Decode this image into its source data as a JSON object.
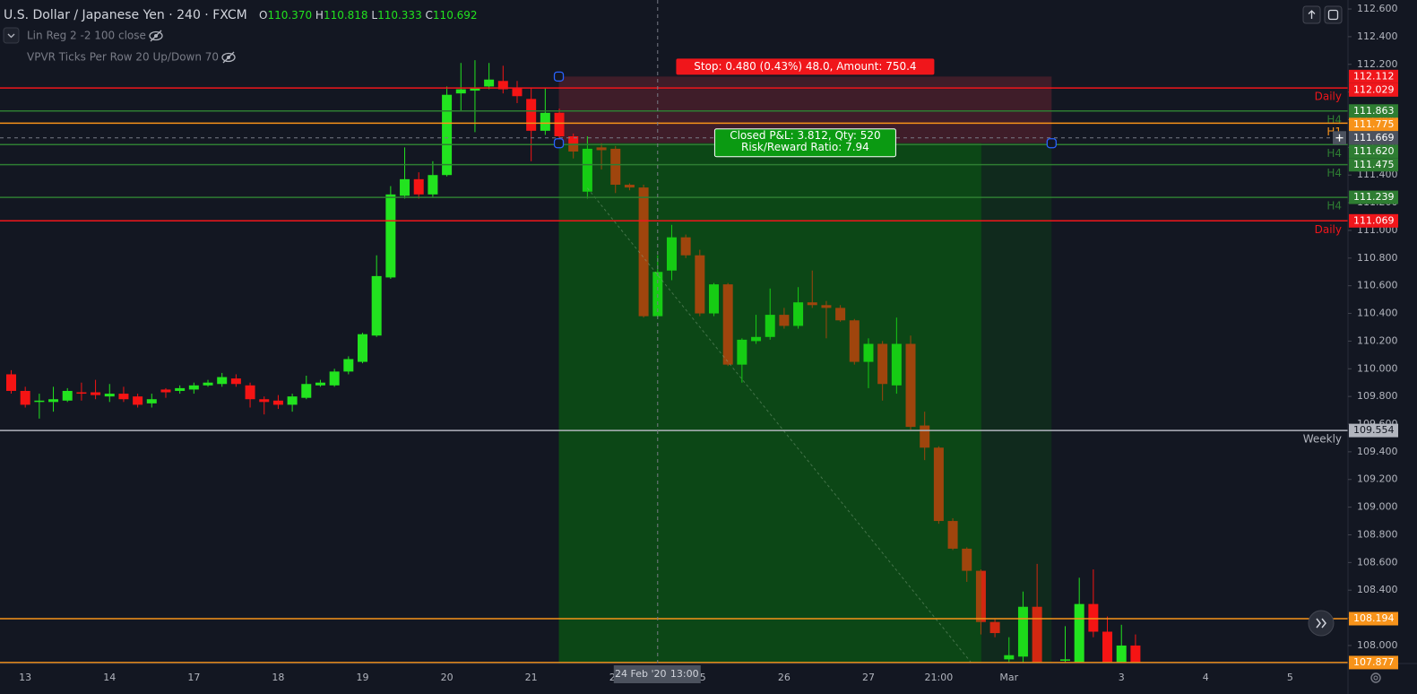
{
  "chart_data": {
    "type": "candlestick",
    "symbol": "U.S. Dollar / Japanese Yen",
    "interval": "240",
    "exchange": "FXCM",
    "legend_ohlc": [
      {
        "key": "O",
        "value": "110.370"
      },
      {
        "key": "H",
        "value": "110.818"
      },
      {
        "key": "L",
        "value": "110.333"
      },
      {
        "key": "C",
        "value": "110.692"
      }
    ],
    "indicators": [
      "Lin Reg 2 -2 100 close",
      "VPVR Ticks Per Row 20 Up/Down 70"
    ],
    "categories": [
      null,
      "13",
      null,
      null,
      null,
      null,
      null,
      "14",
      null,
      null,
      null,
      null,
      null,
      "17",
      null,
      null,
      null,
      null,
      null,
      "18",
      null,
      null,
      null,
      null,
      null,
      "19",
      null,
      null,
      null,
      null,
      null,
      "20",
      null,
      null,
      null,
      null,
      null,
      "21",
      null,
      null,
      null,
      null,
      null,
      "24",
      null,
      null,
      null,
      null,
      null,
      "25",
      null,
      null,
      null,
      null,
      null,
      "26",
      null,
      null,
      null,
      null,
      null,
      "27",
      null,
      null,
      null,
      null,
      "21:00",
      null,
      null,
      null,
      null,
      "Mar",
      null,
      null,
      null,
      null,
      null,
      null,
      null,
      "3",
      null,
      null,
      null,
      null,
      null,
      "4",
      null,
      null,
      null,
      null,
      null,
      "5"
    ],
    "open": [
      109.96,
      109.84,
      109.76,
      109.76,
      109.77,
      109.83,
      109.83,
      109.8,
      109.82,
      109.8,
      109.75,
      109.85,
      109.84,
      109.85,
      109.88,
      109.89,
      109.93,
      109.88,
      109.78,
      109.77,
      109.74,
      109.79,
      109.88,
      109.88,
      109.98,
      110.05,
      110.24,
      110.66,
      111.25,
      111.37,
      111.26,
      111.4,
      111.99,
      112.01,
      112.04,
      112.08,
      112.03,
      111.95,
      111.72,
      111.85,
      111.68,
      111.28,
      111.6,
      111.59,
      111.33,
      111.31,
      110.38,
      110.71,
      110.95,
      110.82,
      110.4,
      110.61,
      110.03,
      110.2,
      110.23,
      110.39,
      110.31,
      110.48,
      110.46,
      110.44,
      110.35,
      110.05,
      110.18,
      109.88,
      110.18,
      109.59,
      109.43,
      108.9,
      108.7,
      108.54,
      108.17,
      107.9,
      107.92,
      108.28,
      null,
      107.89,
      107.85,
      108.3,
      108.1,
      107.88,
      108.0,
      null,
      null,
      null,
      null,
      null,
      null,
      null,
      null,
      null,
      null,
      null
    ],
    "high": [
      109.99,
      109.87,
      109.82,
      109.87,
      109.86,
      109.9,
      109.92,
      109.89,
      109.87,
      109.82,
      109.82,
      109.86,
      109.88,
      109.9,
      109.92,
      109.97,
      109.96,
      109.9,
      109.8,
      109.81,
      109.82,
      109.95,
      109.92,
      110.0,
      110.09,
      110.26,
      110.82,
      111.32,
      111.6,
      111.42,
      111.5,
      112.04,
      112.21,
      112.23,
      112.21,
      112.19,
      112.08,
      112.03,
      112.03,
      111.88,
      111.7,
      111.68,
      111.63,
      111.61,
      111.34,
      111.33,
      110.82,
      111.04,
      110.97,
      110.86,
      110.62,
      110.62,
      110.22,
      110.39,
      110.58,
      110.44,
      110.59,
      110.71,
      110.49,
      110.46,
      110.36,
      110.22,
      110.2,
      110.37,
      110.24,
      109.69,
      109.44,
      108.92,
      108.71,
      108.55,
      108.19,
      108.06,
      108.39,
      108.59,
      null,
      108.14,
      108.49,
      108.55,
      108.21,
      108.15,
      108.08,
      null,
      null,
      null,
      null,
      null,
      null,
      null,
      null,
      null,
      null,
      null
    ],
    "low": [
      109.82,
      109.72,
      109.64,
      109.69,
      109.76,
      109.77,
      109.78,
      109.76,
      109.76,
      109.72,
      109.72,
      109.79,
      109.82,
      109.82,
      109.87,
      109.87,
      109.87,
      109.72,
      109.67,
      109.71,
      109.69,
      109.78,
      109.87,
      109.87,
      109.96,
      110.04,
      110.23,
      110.65,
      111.23,
      111.23,
      111.24,
      111.39,
      111.86,
      111.71,
      112.02,
      111.99,
      111.92,
      111.5,
      111.69,
      111.6,
      111.52,
      111.23,
      111.44,
      111.27,
      111.29,
      110.37,
      110.37,
      110.64,
      110.8,
      110.38,
      110.38,
      110.02,
      109.9,
      110.18,
      110.21,
      110.29,
      110.29,
      110.44,
      110.22,
      110.34,
      110.03,
      109.86,
      109.77,
      109.82,
      109.56,
      109.34,
      108.88,
      108.69,
      108.46,
      108.08,
      108.06,
      107.85,
      107.85,
      107.82,
      null,
      107.84,
      107.82,
      108.06,
      107.82,
      107.84,
      107.83,
      null,
      null,
      null,
      null,
      null,
      null,
      null,
      null,
      null,
      null,
      null
    ],
    "close": [
      109.84,
      109.74,
      109.77,
      109.78,
      109.84,
      109.82,
      109.81,
      109.82,
      109.78,
      109.74,
      109.78,
      109.83,
      109.86,
      109.88,
      109.9,
      109.94,
      109.89,
      109.78,
      109.76,
      109.74,
      109.8,
      109.89,
      109.9,
      109.98,
      110.07,
      110.25,
      110.67,
      111.26,
      111.37,
      111.26,
      111.4,
      111.98,
      112.02,
      112.03,
      112.09,
      112.02,
      111.97,
      111.72,
      111.85,
      111.68,
      111.57,
      111.59,
      111.58,
      111.33,
      111.31,
      110.38,
      110.7,
      110.95,
      110.82,
      110.4,
      110.61,
      110.03,
      110.21,
      110.23,
      110.39,
      110.31,
      110.48,
      110.46,
      110.44,
      110.35,
      110.05,
      110.18,
      109.89,
      110.18,
      109.58,
      109.43,
      108.9,
      108.7,
      108.54,
      108.17,
      108.09,
      107.93,
      108.28,
      107.85,
      null,
      107.9,
      108.3,
      108.1,
      107.85,
      108.0,
      107.86,
      null,
      null,
      null,
      null,
      null,
      null,
      null,
      null,
      null,
      null,
      null
    ],
    "up_color": "#22e31f",
    "down_color": "#f51414",
    "ylim": [
      107.87,
      112.665
    ],
    "yticks": [
      {
        "value": 108.0,
        "label": "108.000"
      },
      {
        "value": 108.2,
        "label": "108.200"
      },
      {
        "value": 108.4,
        "label": "108.400"
      },
      {
        "value": 108.6,
        "label": "108.600"
      },
      {
        "value": 108.8,
        "label": "108.800"
      },
      {
        "value": 109.0,
        "label": "109.000"
      },
      {
        "value": 109.2,
        "label": "109.200"
      },
      {
        "value": 109.4,
        "label": "109.400"
      },
      {
        "value": 109.6,
        "label": "109.600"
      },
      {
        "value": 109.8,
        "label": "109.800"
      },
      {
        "value": 110.0,
        "label": "110.000"
      },
      {
        "value": 110.2,
        "label": "110.200"
      },
      {
        "value": 110.4,
        "label": "110.400"
      },
      {
        "value": 110.6,
        "label": "110.600"
      },
      {
        "value": 110.8,
        "label": "110.800"
      },
      {
        "value": 111.0,
        "label": "111.000"
      },
      {
        "value": 111.2,
        "label": "111.200"
      },
      {
        "value": 111.4,
        "label": "111.400"
      },
      {
        "value": 111.6,
        "label": "111.600"
      },
      {
        "value": 111.8,
        "label": "111.800"
      },
      {
        "value": 112.0,
        "label": "112.000"
      },
      {
        "value": 112.2,
        "label": "112.200"
      },
      {
        "value": 112.4,
        "label": "112.400"
      },
      {
        "value": 112.6,
        "label": "112.600"
      }
    ],
    "levels": [
      {
        "value": 112.029,
        "label": "112.029",
        "color": "#f0161b",
        "tag": "Daily"
      },
      {
        "value": 111.863,
        "label": "111.863",
        "color": "#2e7d32",
        "tag": "H4"
      },
      {
        "value": 111.775,
        "label": "111.775",
        "color": "#f7931a",
        "tag": "H1"
      },
      {
        "value": 111.62,
        "label": "111.620",
        "color": "#2e7d32",
        "tag": "H4"
      },
      {
        "value": 111.475,
        "label": "111.475",
        "color": "#2e7d32",
        "tag": "H4"
      },
      {
        "value": 111.239,
        "label": "111.239",
        "color": "#2e7d32",
        "tag": "H4"
      },
      {
        "value": 111.069,
        "label": "111.069",
        "color": "#f0161b",
        "tag": "Daily"
      },
      {
        "value": 109.554,
        "label": "109.554",
        "color": "#b2b5be",
        "tag": "Weekly"
      },
      {
        "value": 108.194,
        "label": "108.194",
        "color": "#f7931a"
      },
      {
        "value": 107.877,
        "label": "107.877",
        "color": "#f7931a"
      }
    ],
    "position": {
      "stop": {
        "value": 112.112,
        "label": "112.112"
      },
      "entry": 111.63,
      "start": 39,
      "closed": 69,
      "end": 74,
      "stop_text": "Stop: 0.480 (0.43%) 48.0, Amount: 750.4",
      "result_text": "Closed P&L: 3.812, Qty: 520",
      "ratio_text": "Risk/Reward Ratio: 7.94"
    },
    "crosshair": {
      "index": 46,
      "price": {
        "value": 111.669,
        "label": "111.669"
      },
      "date": "24 Feb '20",
      "time": "13:00"
    }
  }
}
